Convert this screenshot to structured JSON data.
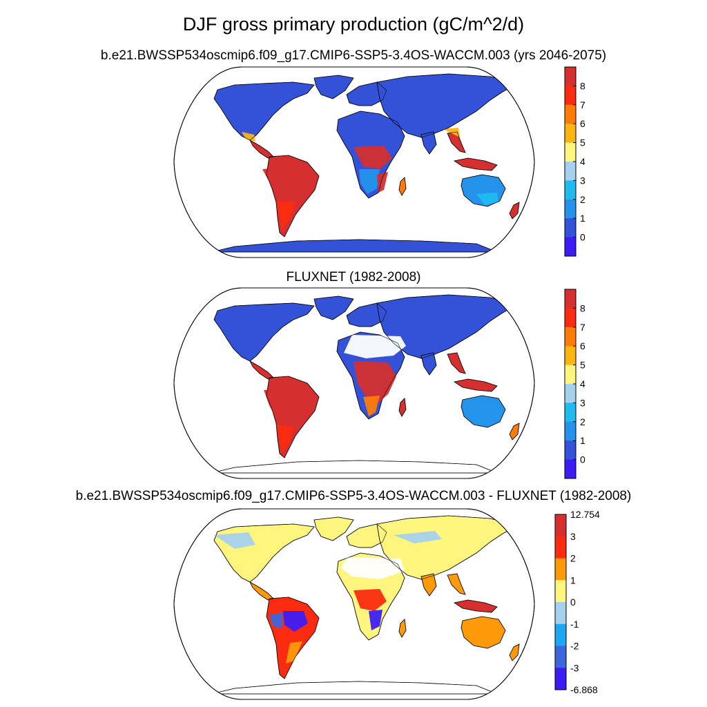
{
  "title": "DJF gross primary production (gC/m^2/d)",
  "panels": [
    {
      "title": "b.e21.BWSSP534oscmip6.f09_g17.CMIP6-SSP5-3.4OS-WACCM.003 (yrs 2046-2075)",
      "panel_type": "model"
    },
    {
      "title": "FLUXNET (1982-2008)",
      "panel_type": "obs"
    },
    {
      "title": "b.e21.BWSSP534oscmip6.f09_g17.CMIP6-SSP5-3.4OS-WACCM.003 - FLUXNET (1982-2008)",
      "panel_type": "diff"
    }
  ],
  "colorbars": {
    "absolute": {
      "labels": [
        "8",
        "7",
        "6",
        "5",
        "4",
        "3",
        "2",
        "1",
        "0"
      ],
      "colors": [
        "#d62f2f",
        "#fb2b10",
        "#fd7b08",
        "#fcb50f",
        "#fdf57e",
        "#a6d1ed",
        "#1ebbf1",
        "#2593ec",
        "#3452d8",
        "#3c1cf5"
      ]
    },
    "difference": {
      "labels": [
        "12.754",
        "3",
        "2",
        "1",
        "0",
        "-1",
        "-2",
        "-3",
        "-6.868"
      ],
      "colors": [
        "#d62f2f",
        "#fb2b10",
        "#fd9a09",
        "#fdf57e",
        "#a6d1ed",
        "#1ea6f1",
        "#3b66dd",
        "#3c1cf5"
      ]
    }
  }
}
